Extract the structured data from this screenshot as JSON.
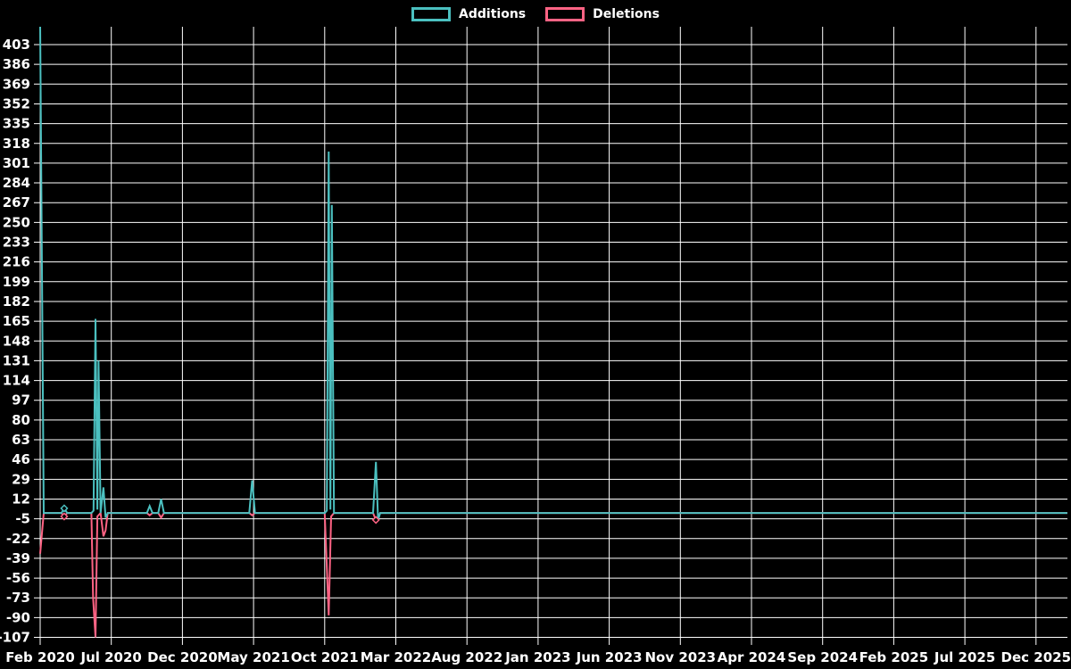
{
  "legend": {
    "items": [
      {
        "label": "Additions",
        "color": "#4bc0c0"
      },
      {
        "label": "Deletions",
        "color": "#ff6384"
      }
    ]
  },
  "chart_data": {
    "type": "line",
    "title": "",
    "background_color": "#000000",
    "grid_color": "#ffffff",
    "text_color": "#ffffff",
    "legend_position": "top",
    "x_axis": {
      "unit": "months since Feb 2020",
      "tick_labels": [
        "Feb 2020",
        "Jul 2020",
        "Dec 2020",
        "May 2021",
        "Oct 2021",
        "Mar 2022",
        "Aug 2022",
        "Jan 2023",
        "Jun 2023",
        "Nov 2023",
        "Apr 2024",
        "Sep 2024",
        "Feb 2025",
        "Jul 2025",
        "Dec 2025"
      ],
      "tick_months": [
        0,
        5,
        10,
        15,
        20,
        25,
        30,
        35,
        40,
        45,
        50,
        55,
        60,
        65,
        70
      ],
      "range_months": [
        0,
        72.2
      ]
    },
    "y_axis": {
      "tick_values": [
        403,
        386,
        369,
        352,
        335,
        318,
        301,
        284,
        267,
        250,
        233,
        216,
        199,
        182,
        165,
        148,
        131,
        114,
        97,
        80,
        63,
        46,
        29,
        12,
        -5,
        -22,
        -39,
        -56,
        -73,
        -90,
        -107
      ],
      "tick_step": 17,
      "visible_range": [
        -107,
        418
      ],
      "note_top_clipped_spike": "first Additions spike exceeds chart top (>403)"
    },
    "series": [
      {
        "name": "Deletions",
        "color": "#ff6384",
        "points": [
          [
            0,
            -35
          ],
          [
            0.25,
            0
          ],
          [
            1.5,
            0
          ],
          [
            1.69,
            -3
          ],
          [
            1.9,
            0
          ],
          [
            3.6,
            0
          ],
          [
            3.72,
            -73
          ],
          [
            3.89,
            -107
          ],
          [
            4.02,
            -3
          ],
          [
            4.25,
            0
          ],
          [
            4.45,
            -20
          ],
          [
            4.6,
            -15
          ],
          [
            4.75,
            0
          ],
          [
            7.5,
            0
          ],
          [
            7.7,
            -2
          ],
          [
            7.9,
            0
          ],
          [
            8.3,
            0
          ],
          [
            8.5,
            -4
          ],
          [
            8.7,
            0
          ],
          [
            14.7,
            0
          ],
          [
            14.9,
            -2
          ],
          [
            15.1,
            0
          ],
          [
            20.0,
            0
          ],
          [
            20.28,
            -88
          ],
          [
            20.45,
            -3
          ],
          [
            20.65,
            0
          ],
          [
            23.4,
            0
          ],
          [
            23.6,
            -6
          ],
          [
            23.9,
            0
          ],
          [
            72.2,
            0
          ]
        ],
        "markers": [
          [
            1.69,
            -3
          ],
          [
            23.6,
            -6
          ]
        ]
      },
      {
        "name": "Additions",
        "color": "#4bc0c0",
        "points": [
          [
            0,
            420
          ],
          [
            0.25,
            0
          ],
          [
            1.5,
            0
          ],
          [
            1.69,
            4
          ],
          [
            1.9,
            0
          ],
          [
            3.6,
            0
          ],
          [
            3.75,
            2
          ],
          [
            3.89,
            167
          ],
          [
            4.02,
            3
          ],
          [
            4.1,
            131
          ],
          [
            4.25,
            0
          ],
          [
            4.45,
            22
          ],
          [
            4.6,
            -4
          ],
          [
            4.75,
            0
          ],
          [
            7.5,
            0
          ],
          [
            7.7,
            6
          ],
          [
            7.9,
            0
          ],
          [
            8.3,
            0
          ],
          [
            8.5,
            12
          ],
          [
            8.7,
            0
          ],
          [
            14.7,
            0
          ],
          [
            14.9,
            28
          ],
          [
            15.1,
            0
          ],
          [
            20.0,
            0
          ],
          [
            20.15,
            2
          ],
          [
            20.28,
            311
          ],
          [
            20.4,
            3
          ],
          [
            20.5,
            265
          ],
          [
            20.65,
            0
          ],
          [
            23.4,
            0
          ],
          [
            23.6,
            44
          ],
          [
            23.75,
            -6
          ],
          [
            23.9,
            0
          ],
          [
            72.2,
            0
          ]
        ],
        "markers": [
          [
            1.69,
            4
          ]
        ]
      }
    ]
  }
}
